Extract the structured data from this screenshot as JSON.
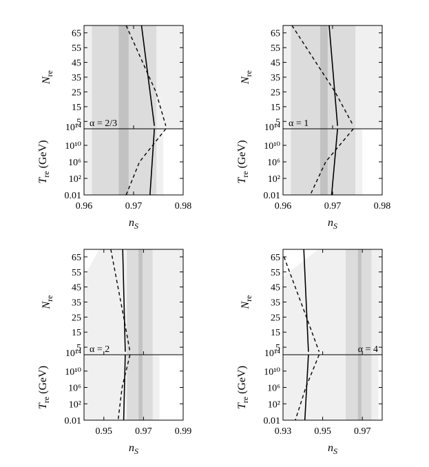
{
  "colors": {
    "light": "#f0f0f0",
    "mid": "#dcdcdc",
    "dark": "#c2c2c2",
    "line": "#000000"
  },
  "chart_data": [
    {
      "type": "line",
      "annotation": "α = 2/3",
      "xlabel": "n",
      "xlabel_sub": "S",
      "ylabel_top": "N",
      "ylabel_top_sub": "re",
      "ylabel_bottom": "T",
      "ylabel_bottom_sub": "re",
      "ylabel_bottom_unit": " (GeV)",
      "xlim": [
        0.96,
        0.98
      ],
      "xticks": [
        "0.96",
        "0.97",
        "0.98"
      ],
      "nre_lim": [
        0,
        70
      ],
      "nre_ticks": [
        "5",
        "15",
        "25",
        "35",
        "45",
        "55",
        "65"
      ],
      "tre_ticks": [
        "0.01",
        "10²",
        "10⁶",
        "10¹⁰",
        "10¹⁴"
      ],
      "bands": {
        "light": [
          0.9616,
          0.9746
        ],
        "mid": [
          0.9616,
          0.9746
        ],
        "dark": [
          0.967,
          0.969
        ]
      },
      "solid_nre": [
        [
          0.9716,
          70
        ],
        [
          0.9742,
          2
        ]
      ],
      "dashed_nre": [
        [
          0.9685,
          70
        ],
        [
          0.9745,
          25
        ],
        [
          0.9765,
          2
        ]
      ],
      "solid_tre": [
        [
          0.9742,
          14
        ],
        [
          0.9733,
          -2
        ]
      ],
      "dashed_tre": [
        [
          0.9765,
          14
        ],
        [
          0.9712,
          6
        ],
        [
          0.9685,
          -2
        ]
      ]
    },
    {
      "type": "line",
      "annotation": "α = 1",
      "xlabel": "n",
      "xlabel_sub": "S",
      "ylabel_top": "N",
      "ylabel_top_sub": "re",
      "ylabel_bottom": "T",
      "ylabel_bottom_sub": "re",
      "ylabel_bottom_unit": " (GeV)",
      "xlim": [
        0.96,
        0.98
      ],
      "xticks": [
        "0.96",
        "0.97",
        "0.98"
      ],
      "nre_lim": [
        0,
        70
      ],
      "nre_ticks": [
        "5",
        "15",
        "25",
        "35",
        "45",
        "55",
        "65"
      ],
      "tre_ticks": [
        "0.01",
        "10²",
        "10⁶",
        "10¹⁰",
        "10¹⁴"
      ],
      "bands": {
        "light": [
          0.9616,
          0.9746
        ],
        "mid": [
          0.9616,
          0.9746
        ],
        "dark": [
          0.9675,
          0.969
        ]
      },
      "solid_nre": [
        [
          0.9693,
          70
        ],
        [
          0.971,
          2
        ]
      ],
      "dashed_nre": [
        [
          0.9618,
          70
        ],
        [
          0.9705,
          25
        ],
        [
          0.9742,
          2
        ]
      ],
      "solid_tre": [
        [
          0.971,
          14
        ],
        [
          0.9698,
          -2
        ]
      ],
      "dashed_tre": [
        [
          0.9742,
          14
        ],
        [
          0.9686,
          6
        ],
        [
          0.9655,
          -2
        ]
      ]
    },
    {
      "type": "line",
      "annotation": "α = 2",
      "xlabel": "n",
      "xlabel_sub": "S",
      "ylabel_top": "N",
      "ylabel_top_sub": "re",
      "ylabel_bottom": "T",
      "ylabel_bottom_sub": "re",
      "ylabel_bottom_unit": " (GeV)",
      "xlim": [
        0.94,
        0.99
      ],
      "xticks": [
        "0.95",
        "0.97",
        "0.99"
      ],
      "nre_lim": [
        0,
        70
      ],
      "nre_ticks": [
        "5",
        "15",
        "25",
        "35",
        "45",
        "55",
        "65"
      ],
      "tre_ticks": [
        "0.01",
        "10²",
        "10⁶",
        "10¹⁰",
        "10¹⁴"
      ],
      "bands": {
        "light": [
          0.9616,
          0.9746
        ],
        "mid": [
          0.9616,
          0.9746
        ],
        "dark": [
          0.9675,
          0.9695
        ]
      },
      "solid_nre": [
        [
          0.9595,
          70
        ],
        [
          0.9608,
          2
        ]
      ],
      "dashed_nre": [
        [
          0.9535,
          70
        ],
        [
          0.96,
          25
        ],
        [
          0.9632,
          2
        ]
      ],
      "solid_tre": [
        [
          0.9608,
          14
        ],
        [
          0.96,
          -2
        ]
      ],
      "dashed_tre": [
        [
          0.9632,
          14
        ],
        [
          0.9592,
          6
        ],
        [
          0.9572,
          -2
        ]
      ]
    },
    {
      "type": "line",
      "annotation": "α = 4",
      "xlabel": "n",
      "xlabel_sub": "S",
      "ylabel_top": "N",
      "ylabel_top_sub": "re",
      "ylabel_bottom": "T",
      "ylabel_bottom_sub": "re",
      "ylabel_bottom_unit": " (GeV)",
      "xlim": [
        0.93,
        0.98
      ],
      "xticks": [
        "0.93",
        "0.95",
        "0.97"
      ],
      "nre_lim": [
        0,
        70
      ],
      "nre_ticks": [
        "5",
        "15",
        "25",
        "35",
        "45",
        "55",
        "65"
      ],
      "tre_ticks": [
        "0.01",
        "10²",
        "10⁶",
        "10¹⁰",
        "10¹⁴"
      ],
      "bands": {
        "light": [
          0.9616,
          0.9746
        ],
        "mid": [
          0.9616,
          0.9746
        ],
        "dark": [
          0.9678,
          0.9695
        ]
      },
      "solid_nre": [
        [
          0.9405,
          70
        ],
        [
          0.9428,
          2
        ]
      ],
      "dashed_nre": [
        [
          0.9305,
          65
        ],
        [
          0.9418,
          25
        ],
        [
          0.9482,
          2
        ]
      ],
      "solid_tre": [
        [
          0.9428,
          14
        ],
        [
          0.941,
          -2
        ]
      ],
      "dashed_tre": [
        [
          0.9482,
          14
        ],
        [
          0.9415,
          6
        ],
        [
          0.9362,
          -2
        ]
      ]
    }
  ]
}
